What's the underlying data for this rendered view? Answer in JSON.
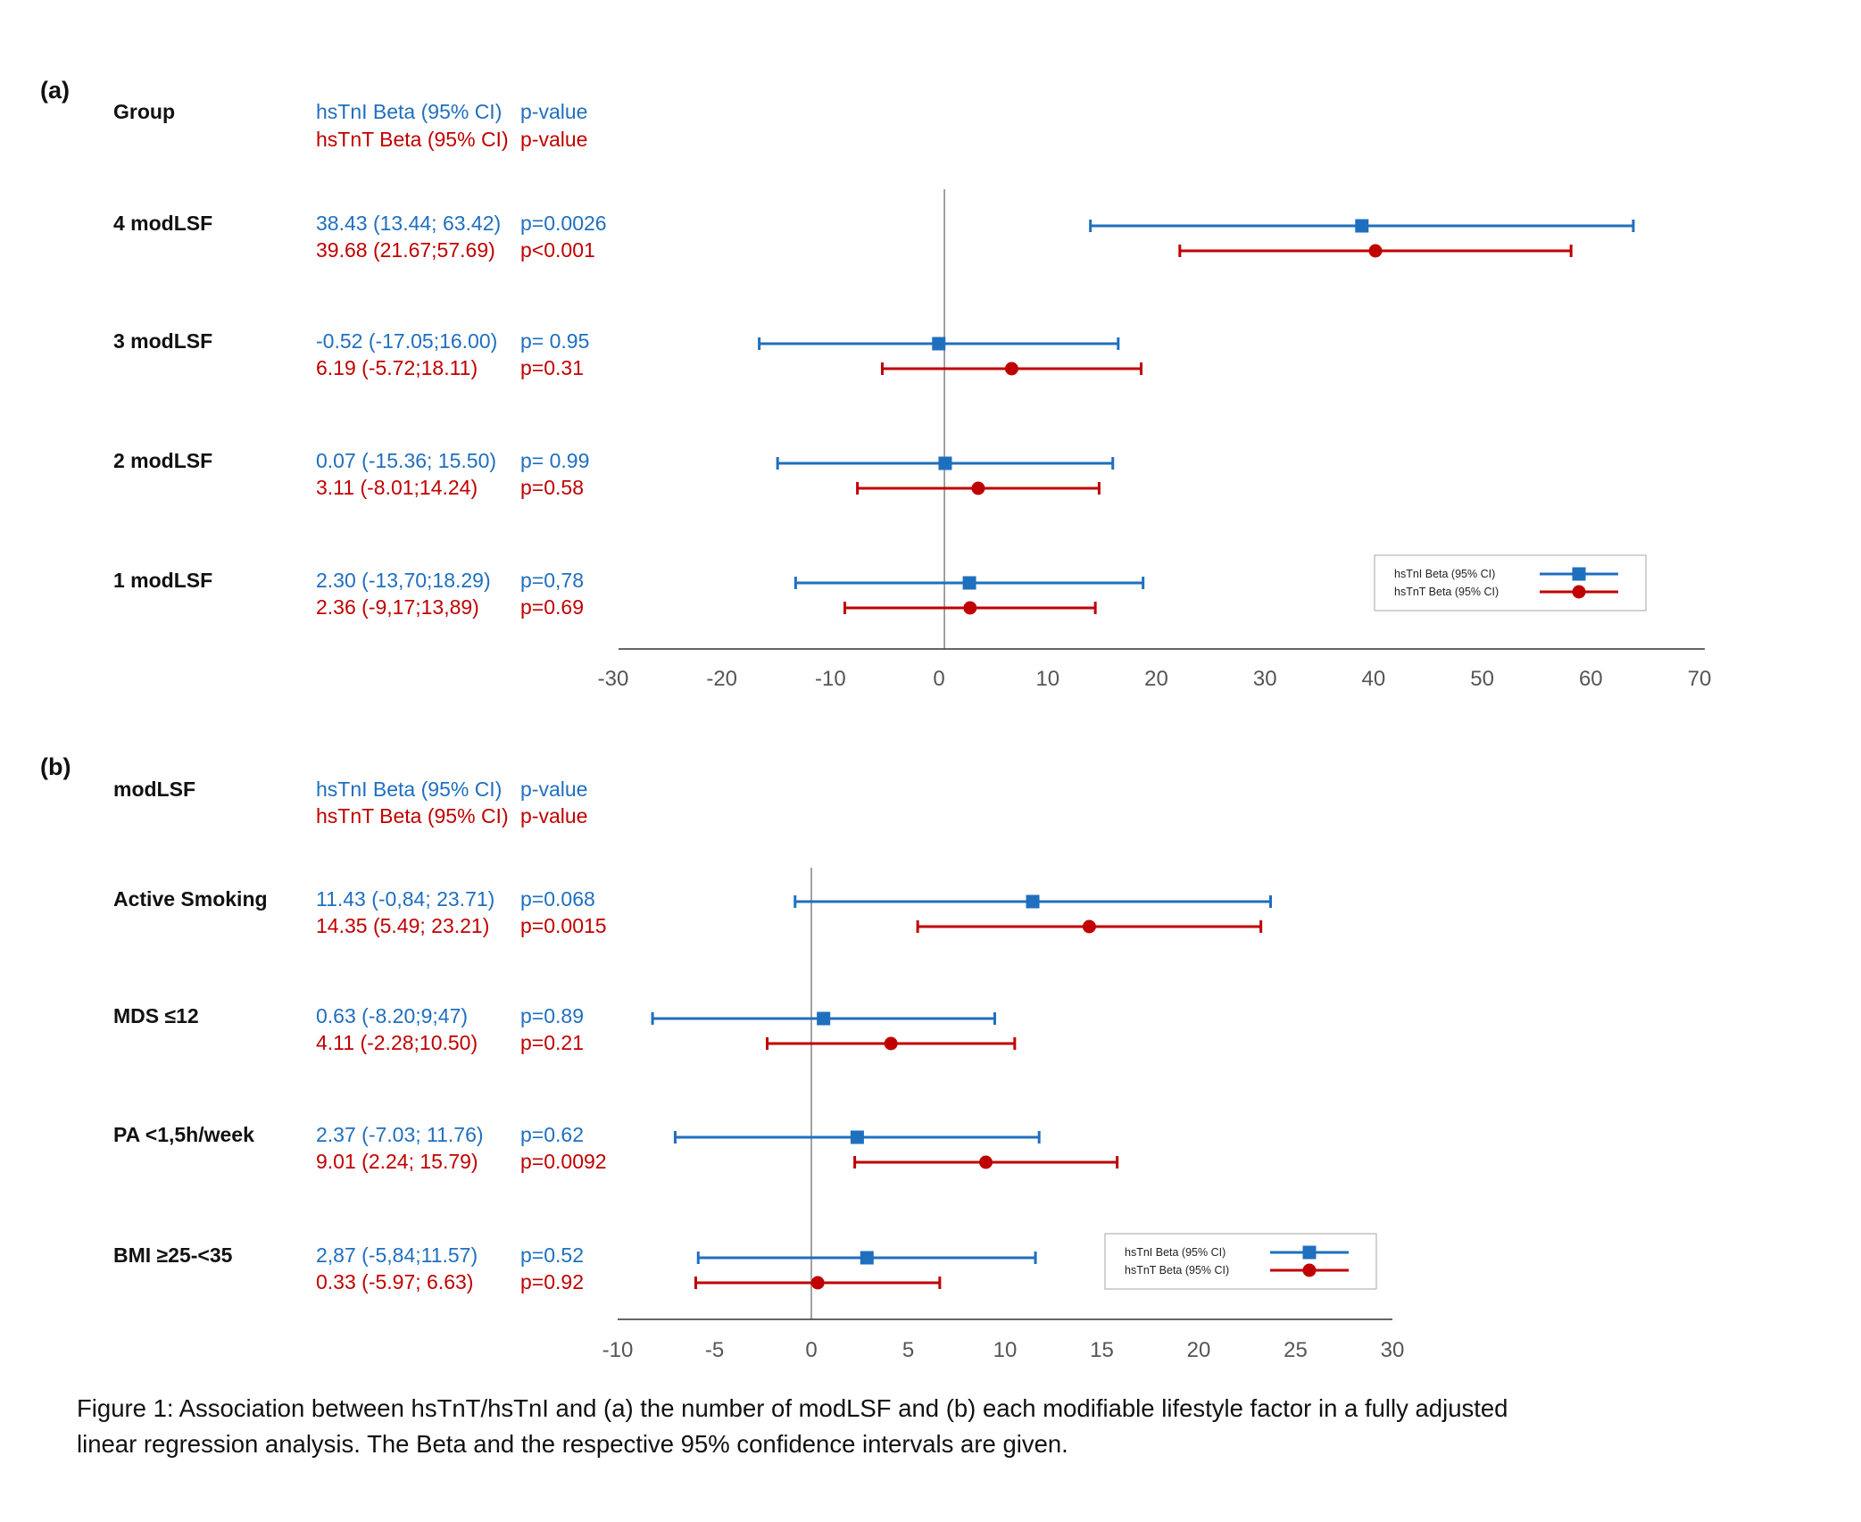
{
  "colors": {
    "hsTnI": "#1f6fbf",
    "hsTnT": "#c00000",
    "axis": "#777777"
  },
  "marker_icons": {
    "hsTnI": "square-marker-icon",
    "hsTnT": "circle-marker-icon"
  },
  "caption": "Figure 1: Association between hsTnT/hsTnI and (a) the number of modLSF and (b) each modifiable lifestyle factor in a fully adjusted linear regression analysis. The Beta and the respective 95% confidence intervals are given.",
  "chart_data": [
    {
      "type": "forest",
      "panel": "(a)",
      "header": {
        "group": "Group",
        "hsTnI_label": "hsTnI Beta (95% CI)",
        "hsTnT_label": "hsTnT Beta (95% CI)",
        "pvalue_label": "p-value"
      },
      "xlim": [
        -30,
        70
      ],
      "xticks": [
        -30,
        -20,
        -10,
        0,
        10,
        20,
        30,
        40,
        50,
        60,
        70
      ],
      "reference_line": 0,
      "legend": {
        "placement": "bottom-right",
        "entries": [
          "hsTnI Beta (95% CI)",
          "hsTnT Beta (95% CI)"
        ]
      },
      "rows": [
        {
          "label": "4 modLSF",
          "hsTnI": {
            "text": "38.43 (13.44; 63.42)",
            "p": "p=0.0026",
            "beta": 38.43,
            "lo": 13.44,
            "hi": 63.42
          },
          "hsTnT": {
            "text": "39.68 (21.67;57.69)",
            "p": "p<0.001",
            "beta": 39.68,
            "lo": 21.67,
            "hi": 57.69
          }
        },
        {
          "label": "3 modLSF",
          "hsTnI": {
            "text": "-0.52 (-17.05;16.00)",
            "p": "p= 0.95",
            "beta": -0.52,
            "lo": -17.05,
            "hi": 16.0
          },
          "hsTnT": {
            "text": "6.19 (-5.72;18.11)",
            "p": "p=0.31",
            "beta": 6.19,
            "lo": -5.72,
            "hi": 18.11
          }
        },
        {
          "label": "2 modLSF",
          "hsTnI": {
            "text": "0.07 (-15.36; 15.50)",
            "p": "p= 0.99",
            "beta": 0.07,
            "lo": -15.36,
            "hi": 15.5
          },
          "hsTnT": {
            "text": "3.11 (-8.01;14.24)",
            "p": "p=0.58",
            "beta": 3.11,
            "lo": -8.01,
            "hi": 14.24
          }
        },
        {
          "label": "1 modLSF",
          "hsTnI": {
            "text": "2.30 (-13,70;18.29)",
            "p": "p=0,78",
            "beta": 2.3,
            "lo": -13.7,
            "hi": 18.29
          },
          "hsTnT": {
            "text": "2.36 (-9,17;13,89)",
            "p": "p=0.69",
            "beta": 2.36,
            "lo": -9.17,
            "hi": 13.89
          }
        }
      ]
    },
    {
      "type": "forest",
      "panel": "(b)",
      "header": {
        "group": "modLSF",
        "hsTnI_label": "hsTnI Beta (95% CI)",
        "hsTnT_label": "hsTnT Beta (95% CI)",
        "pvalue_label": "p-value"
      },
      "xlim": [
        -10,
        30
      ],
      "xticks": [
        -10,
        -5,
        0,
        5,
        10,
        15,
        20,
        25,
        30
      ],
      "reference_line": 0,
      "legend": {
        "placement": "bottom-right",
        "entries": [
          "hsTnI Beta (95% CI)",
          "hsTnT Beta (95% CI)"
        ]
      },
      "rows": [
        {
          "label": "Active Smoking",
          "hsTnI": {
            "text": "11.43 (-0,84; 23.71)",
            "p": "p=0.068",
            "beta": 11.43,
            "lo": -0.84,
            "hi": 23.71
          },
          "hsTnT": {
            "text": "14.35 (5.49; 23.21)",
            "p": "p=0.0015",
            "beta": 14.35,
            "lo": 5.49,
            "hi": 23.21
          }
        },
        {
          "label": "MDS ≤12",
          "hsTnI": {
            "text": "0.63 (-8.20;9;47)",
            "p": "p=0.89",
            "beta": 0.63,
            "lo": -8.2,
            "hi": 9.47
          },
          "hsTnT": {
            "text": "4.11 (-2.28;10.50)",
            "p": "p=0.21",
            "beta": 4.11,
            "lo": -2.28,
            "hi": 10.5
          }
        },
        {
          "label": "PA <1,5h/week",
          "hsTnI": {
            "text": "2.37 (-7.03; 11.76)",
            "p": "p=0.62",
            "beta": 2.37,
            "lo": -7.03,
            "hi": 11.76
          },
          "hsTnT": {
            "text": "9.01 (2.24; 15.79)",
            "p": "p=0.0092",
            "beta": 9.01,
            "lo": 2.24,
            "hi": 15.79
          }
        },
        {
          "label": "BMI ≥25-<35",
          "hsTnI": {
            "text": "2,87 (-5,84;11.57)",
            "p": "p=0.52",
            "beta": 2.87,
            "lo": -5.84,
            "hi": 11.57
          },
          "hsTnT": {
            "text": "0.33 (-5.97; 6.63)",
            "p": "p=0.92",
            "beta": 0.33,
            "lo": -5.97,
            "hi": 6.63
          }
        }
      ]
    }
  ]
}
